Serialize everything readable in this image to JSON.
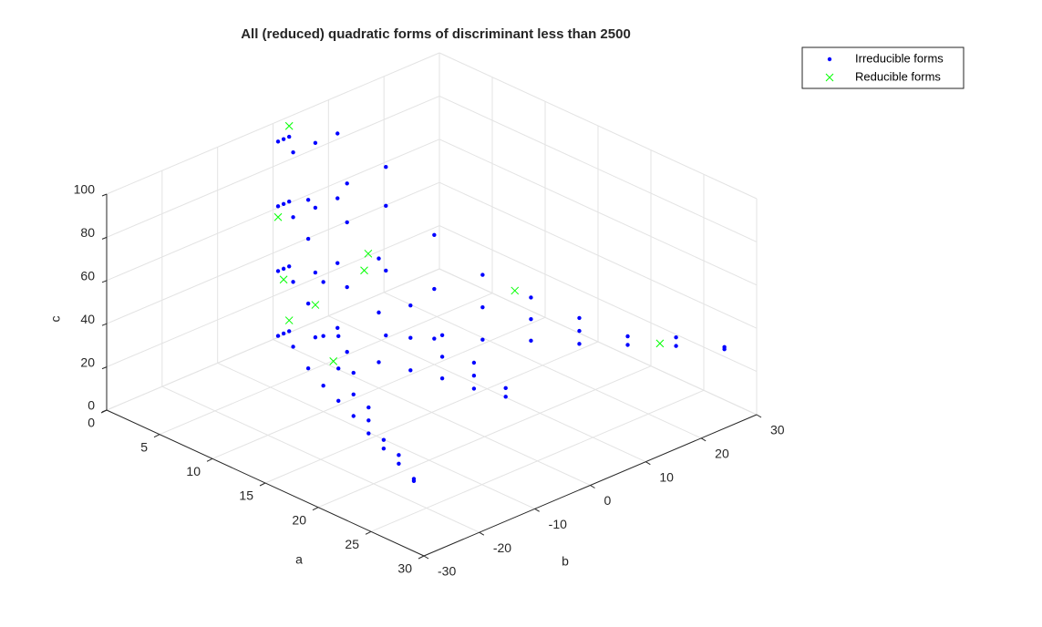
{
  "chart_data": {
    "type": "scatter3d",
    "title": "All (reduced) quadratic forms of discriminant less than 2500",
    "x_label": "a",
    "y_label": "b",
    "z_label": "c",
    "xlim": [
      0,
      30
    ],
    "ylim": [
      -30,
      30
    ],
    "zlim": [
      0,
      100
    ],
    "xticks": [
      0,
      5,
      10,
      15,
      20,
      25,
      30
    ],
    "yticks": [
      -30,
      -20,
      -10,
      0,
      10,
      20,
      30
    ],
    "zticks": [
      0,
      20,
      40,
      60,
      80,
      100
    ],
    "grid": true,
    "legend": "top-right",
    "series": [
      {
        "name": "Irreducible forms",
        "color": "#0000ff",
        "marker": "dot",
        "x": [
          1,
          1,
          1,
          1,
          1,
          1,
          1,
          1,
          1,
          1,
          1,
          1,
          4,
          4,
          4,
          4,
          4,
          4,
          4,
          4,
          4,
          4,
          4,
          4,
          7,
          7,
          7,
          7,
          7,
          7,
          7,
          7,
          7,
          7,
          7,
          7,
          10,
          10,
          10,
          10,
          10,
          10,
          10,
          10,
          10,
          13,
          13,
          13,
          13,
          13,
          13,
          13,
          13,
          13,
          16,
          16,
          16,
          16,
          16,
          16,
          16,
          16,
          16,
          19,
          19,
          19,
          19,
          19,
          19,
          19,
          19,
          19,
          22,
          22,
          22,
          22,
          22,
          22,
          25,
          25,
          25,
          25,
          28,
          28,
          28,
          28
        ],
        "y": [
          -1,
          -1,
          -1,
          -1,
          0,
          0,
          0,
          0,
          1,
          1,
          1,
          1,
          -4,
          -4,
          -4,
          -4,
          0,
          0,
          0,
          0,
          4,
          4,
          4,
          4,
          -7,
          -7,
          -7,
          -7,
          0,
          0,
          0,
          0,
          7,
          7,
          7,
          7,
          -10,
          -10,
          -10,
          0,
          0,
          0,
          10,
          10,
          10,
          -13,
          -13,
          -13,
          0,
          0,
          0,
          13,
          13,
          13,
          -16,
          -16,
          -16,
          0,
          0,
          0,
          16,
          16,
          16,
          -19,
          -19,
          -19,
          0,
          0,
          0,
          19,
          19,
          19,
          -22,
          -22,
          0,
          0,
          22,
          22,
          -25,
          -25,
          25,
          25,
          -28,
          -28,
          28,
          28
        ],
        "z": [
          5,
          35,
          65,
          95,
          5,
          35,
          65,
          95,
          5,
          35,
          65,
          95,
          10,
          40,
          70,
          100,
          10,
          40,
          70,
          100,
          10,
          40,
          70,
          100,
          10,
          40,
          70,
          88,
          10,
          40,
          70,
          88,
          10,
          40,
          70,
          88,
          12,
          35,
          60,
          12,
          35,
          60,
          12,
          35,
          60,
          15,
          30,
          45,
          15,
          30,
          45,
          15,
          30,
          45,
          18,
          28,
          38,
          18,
          28,
          38,
          18,
          28,
          38,
          20,
          26,
          32,
          20,
          26,
          32,
          20,
          26,
          32,
          23,
          27,
          23,
          27,
          23,
          27,
          26,
          30,
          26,
          30,
          28,
          29,
          28,
          29
        ]
      },
      {
        "name": "Reducible forms",
        "color": "#00ff00",
        "marker": "x",
        "x": [
          1,
          1,
          1,
          1,
          4,
          6,
          9,
          12,
          15,
          24
        ],
        "y": [
          1,
          -1,
          0,
          1,
          0,
          5,
          0,
          -12,
          15,
          24
        ],
        "z": [
          100,
          60,
          30,
          10,
          25,
          40,
          60,
          30,
          40,
          26
        ]
      }
    ]
  }
}
